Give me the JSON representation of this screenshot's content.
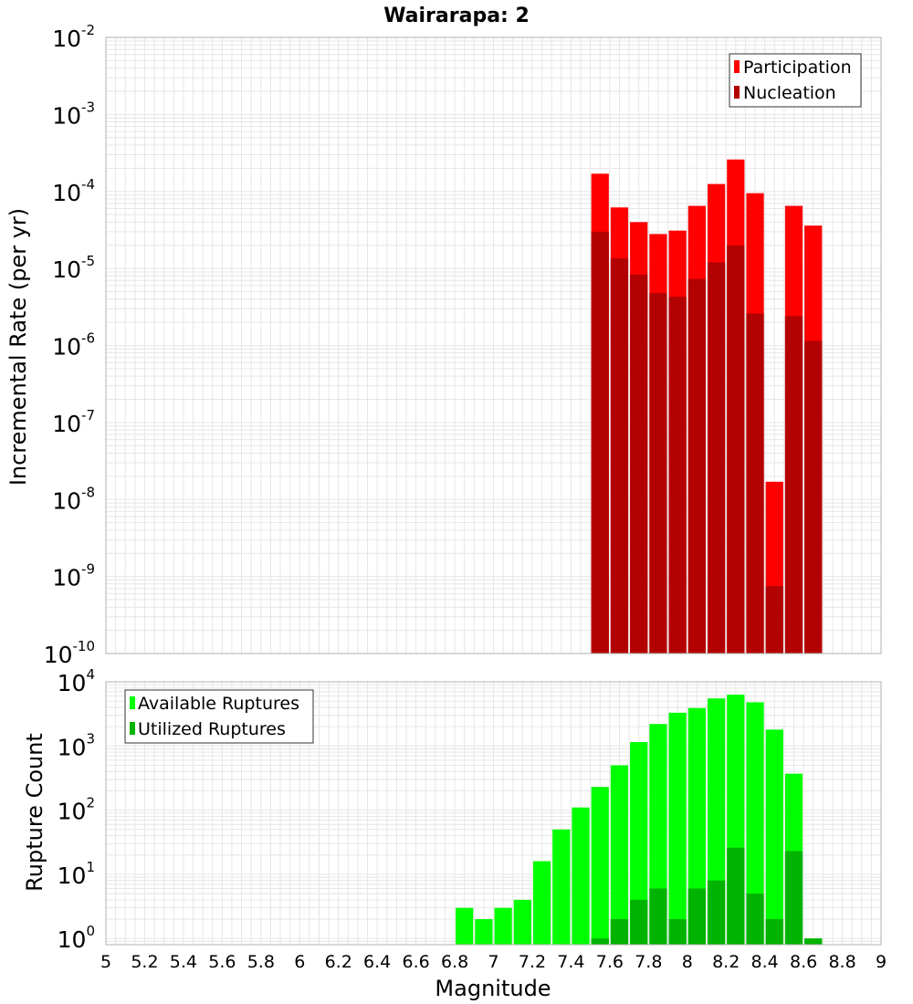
{
  "colors": {
    "participation": "#ff0000",
    "nucleation": "#b30000",
    "available": "#00ff00",
    "utilized": "#00b300",
    "grid": "#e6e6e6",
    "frame": "#b0b0b0"
  },
  "chart_data": [
    {
      "type": "bar",
      "title": "Wairarapa: 2",
      "xlabel": "",
      "ylabel": "Incremental Rate (per yr)",
      "yscale": "log",
      "ylim": [
        1e-10,
        0.01
      ],
      "ytick_exponents": [
        -10,
        -9,
        -8,
        -7,
        -6,
        -5,
        -4,
        -3,
        -2
      ],
      "xlim": [
        5,
        9
      ],
      "grid": true,
      "legend_position": "top-right",
      "bin_width": 0.1,
      "series": [
        {
          "name": "Participation",
          "x": [
            7.55,
            7.65,
            7.75,
            7.85,
            7.95,
            8.05,
            8.15,
            8.25,
            8.35,
            8.45,
            8.55,
            8.65
          ],
          "values": [
            0.00017,
            6.2e-05,
            4e-05,
            2.8e-05,
            3.1e-05,
            6.5e-05,
            0.000125,
            0.00026,
            9.5e-05,
            1.7e-08,
            6.5e-05,
            3.6e-05
          ]
        },
        {
          "name": "Nucleation",
          "x": [
            7.55,
            7.65,
            7.75,
            7.85,
            7.95,
            8.05,
            8.15,
            8.25,
            8.35,
            8.45,
            8.55,
            8.65
          ],
          "values": [
            3e-05,
            1.35e-05,
            8.3e-06,
            4.8e-06,
            4.3e-06,
            7.3e-06,
            1.2e-05,
            2e-05,
            2.6e-06,
            7.5e-10,
            2.4e-06,
            1.15e-06
          ]
        }
      ]
    },
    {
      "type": "bar",
      "title": "",
      "xlabel": "Magnitude",
      "ylabel": "Rupture Count",
      "yscale": "log",
      "ylim": [
        0.8,
        10000
      ],
      "ytick_exponents": [
        0,
        1,
        2,
        3,
        4
      ],
      "xlim": [
        5,
        9
      ],
      "xticks": [
        "5",
        "5.2",
        "5.4",
        "5.6",
        "5.8",
        "6",
        "6.2",
        "6.4",
        "6.6",
        "6.8",
        "7",
        "7.2",
        "7.4",
        "7.6",
        "7.8",
        "8",
        "8.2",
        "8.4",
        "8.6",
        "8.8",
        "9"
      ],
      "grid": true,
      "legend_position": "top-left",
      "bin_width": 0.1,
      "series": [
        {
          "name": "Available Ruptures",
          "x": [
            6.85,
            6.95,
            7.05,
            7.15,
            7.25,
            7.35,
            7.45,
            7.55,
            7.65,
            7.75,
            7.85,
            7.95,
            8.05,
            8.15,
            8.25,
            8.35,
            8.45,
            8.55,
            8.65
          ],
          "values": [
            3,
            2,
            3,
            4,
            16,
            50,
            110,
            230,
            500,
            1150,
            2200,
            3300,
            3900,
            5500,
            6300,
            4800,
            1800,
            370,
            1
          ]
        },
        {
          "name": "Utilized Ruptures",
          "x": [
            7.55,
            7.65,
            7.75,
            7.85,
            7.95,
            8.05,
            8.15,
            8.25,
            8.35,
            8.45,
            8.55,
            8.65
          ],
          "values": [
            1,
            2,
            4,
            6,
            2,
            6,
            8,
            26,
            5,
            2,
            23,
            1
          ]
        }
      ]
    }
  ]
}
